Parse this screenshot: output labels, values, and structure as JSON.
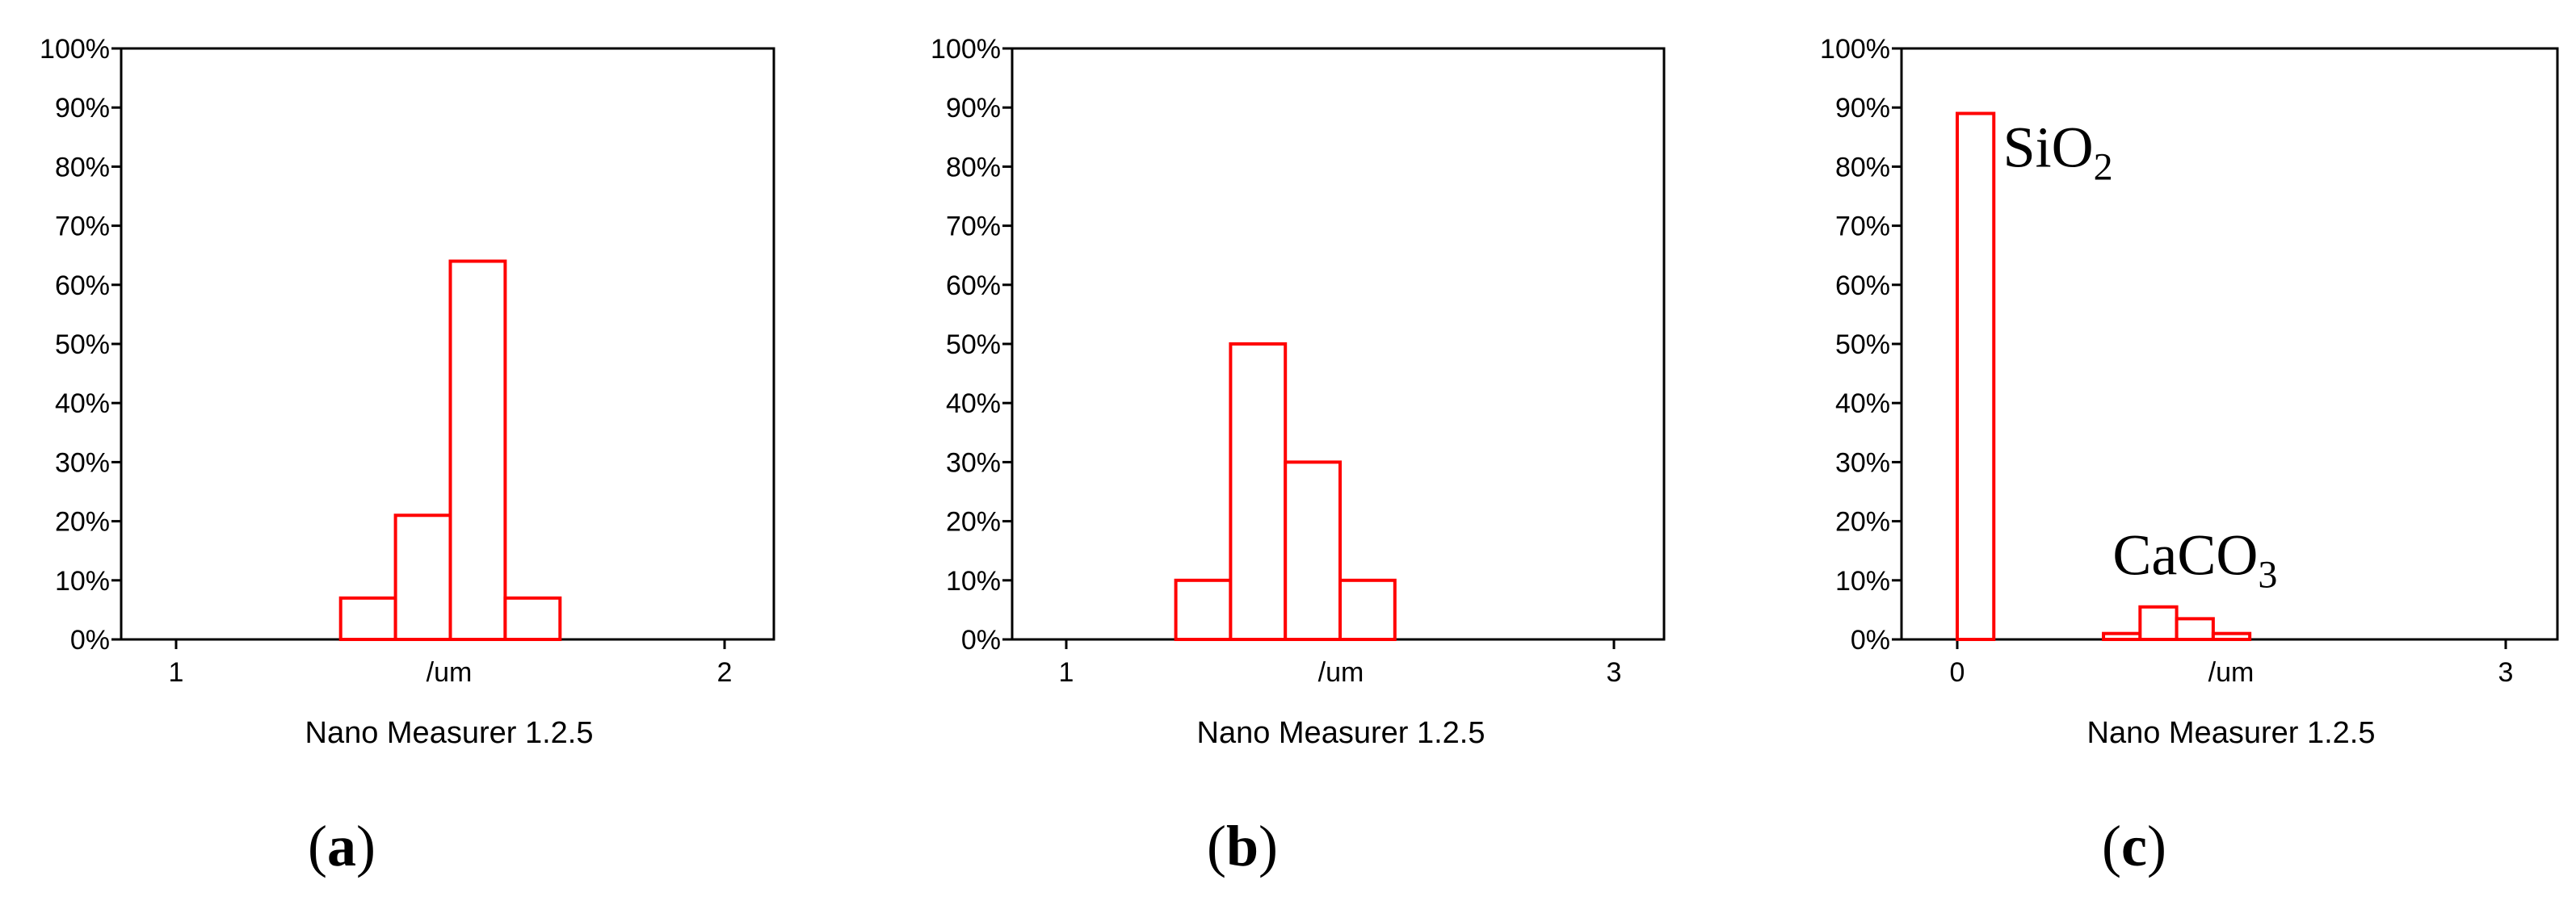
{
  "colors": {
    "bar_stroke": "#ff0000",
    "frame": "#000000"
  },
  "chart_data": [
    {
      "type": "bar",
      "panel_label": "a",
      "xlabel": "Nano Measurer 1.2.5",
      "x_center_label": "/um",
      "x_ticks": [
        "1",
        "2"
      ],
      "y_ticks": [
        "0%",
        "10%",
        "20%",
        "30%",
        "40%",
        "50%",
        "60%",
        "70%",
        "80%",
        "90%",
        "100%"
      ],
      "ylim": [
        0,
        100
      ],
      "grid": false,
      "bins": [
        {
          "x0": 1.3,
          "x1": 1.4,
          "value": 7
        },
        {
          "x0": 1.4,
          "x1": 1.5,
          "value": 21
        },
        {
          "x0": 1.5,
          "x1": 1.6,
          "value": 64
        },
        {
          "x0": 1.6,
          "x1": 1.7,
          "value": 7
        }
      ],
      "annotations": []
    },
    {
      "type": "bar",
      "panel_label": "b",
      "xlabel": "Nano Measurer 1.2.5",
      "x_center_label": "/um",
      "x_ticks": [
        "1",
        "3"
      ],
      "y_ticks": [
        "0%",
        "10%",
        "20%",
        "30%",
        "40%",
        "50%",
        "60%",
        "70%",
        "80%",
        "90%",
        "100%"
      ],
      "ylim": [
        0,
        100
      ],
      "grid": false,
      "bins": [
        {
          "x0": 1.4,
          "x1": 1.6,
          "value": 10
        },
        {
          "x0": 1.6,
          "x1": 1.8,
          "value": 50
        },
        {
          "x0": 1.8,
          "x1": 2.0,
          "value": 30
        },
        {
          "x0": 2.0,
          "x1": 2.2,
          "value": 10
        }
      ],
      "annotations": []
    },
    {
      "type": "bar",
      "panel_label": "c",
      "xlabel": "Nano Measurer 1.2.5",
      "x_center_label": "/um",
      "x_ticks": [
        "0",
        "3"
      ],
      "y_ticks": [
        "0%",
        "10%",
        "20%",
        "30%",
        "40%",
        "50%",
        "60%",
        "70%",
        "80%",
        "90%",
        "100%"
      ],
      "ylim": [
        0,
        100
      ],
      "grid": false,
      "bins": [
        {
          "x0": 0.0,
          "x1": 0.2,
          "value": 89
        },
        {
          "x0": 0.8,
          "x1": 1.0,
          "value": 1
        },
        {
          "x0": 1.0,
          "x1": 1.2,
          "value": 5.5
        },
        {
          "x0": 1.2,
          "x1": 1.4,
          "value": 3.5
        },
        {
          "x0": 1.4,
          "x1": 1.6,
          "value": 1
        }
      ],
      "annotations": [
        {
          "base": "SiO",
          "sub": "2",
          "x": 0.25,
          "y": 80
        },
        {
          "base": "CaCO",
          "sub": "3",
          "x": 0.85,
          "y": 11
        }
      ]
    }
  ]
}
